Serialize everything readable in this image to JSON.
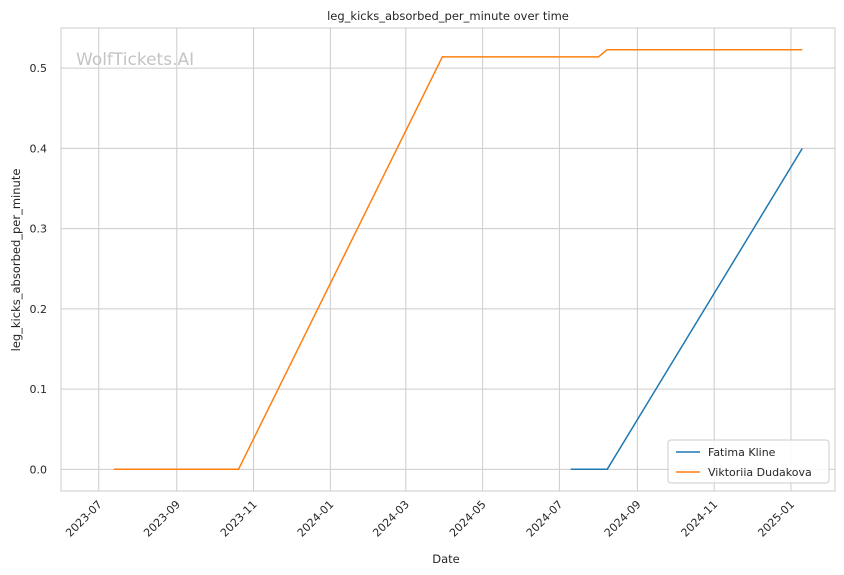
{
  "chart_data": {
    "type": "line",
    "title": "leg_kicks_absorbed_per_minute over time",
    "xlabel": "Date",
    "ylabel": "leg_kicks_absorbed_per_minute",
    "watermark": "WolfTickets.AI",
    "x_ticks": [
      "2023-07",
      "2023-09",
      "2023-11",
      "2024-01",
      "2024-03",
      "2024-05",
      "2024-07",
      "2024-09",
      "2024-11",
      "2025-01"
    ],
    "y_ticks": [
      "0.0",
      "0.1",
      "0.2",
      "0.3",
      "0.4",
      "0.5"
    ],
    "xlim": [
      "2023-06-01",
      "2025-02-05"
    ],
    "ylim": [
      -0.027,
      0.55
    ],
    "grid": true,
    "legend_position": "lower-right",
    "series": [
      {
        "name": "Fatima Kline",
        "color": "#1f77b4",
        "points": [
          {
            "x": "2024-07-10",
            "y": 0.0
          },
          {
            "x": "2024-08-08",
            "y": 0.0
          },
          {
            "x": "2025-01-10",
            "y": 0.4
          }
        ]
      },
      {
        "name": "Viktoriia Dudakova",
        "color": "#ff7f0e",
        "points": [
          {
            "x": "2023-07-13",
            "y": 0.0
          },
          {
            "x": "2023-10-20",
            "y": 0.0
          },
          {
            "x": "2024-03-30",
            "y": 0.514
          },
          {
            "x": "2024-08-01",
            "y": 0.514
          },
          {
            "x": "2024-08-08",
            "y": 0.523
          },
          {
            "x": "2025-01-10",
            "y": 0.523
          }
        ]
      }
    ]
  }
}
